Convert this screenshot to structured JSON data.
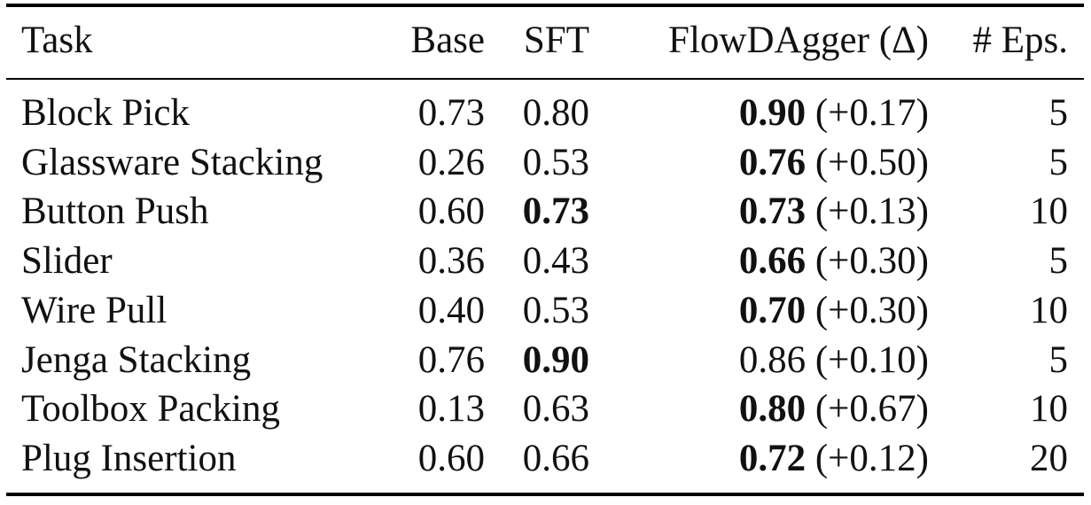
{
  "table": {
    "headers": {
      "task": "Task",
      "base": "Base",
      "sft": "SFT",
      "flow": "FlowDAgger (Δ)",
      "eps": "# Eps."
    },
    "rows": [
      {
        "task": "Block Pick",
        "base": "0.73",
        "sft": "0.80",
        "flow": "0.90",
        "delta": "(+0.17)",
        "eps": "5",
        "sft_bold": false,
        "flow_bold": true
      },
      {
        "task": "Glassware Stacking",
        "base": "0.26",
        "sft": "0.53",
        "flow": "0.76",
        "delta": "(+0.50)",
        "eps": "5",
        "sft_bold": false,
        "flow_bold": true
      },
      {
        "task": "Button Push",
        "base": "0.60",
        "sft": "0.73",
        "flow": "0.73",
        "delta": "(+0.13)",
        "eps": "10",
        "sft_bold": true,
        "flow_bold": true
      },
      {
        "task": "Slider",
        "base": "0.36",
        "sft": "0.43",
        "flow": "0.66",
        "delta": "(+0.30)",
        "eps": "5",
        "sft_bold": false,
        "flow_bold": true
      },
      {
        "task": "Wire Pull",
        "base": "0.40",
        "sft": "0.53",
        "flow": "0.70",
        "delta": "(+0.30)",
        "eps": "10",
        "sft_bold": false,
        "flow_bold": true
      },
      {
        "task": "Jenga Stacking",
        "base": "0.76",
        "sft": "0.90",
        "flow": "0.86",
        "delta": "(+0.10)",
        "eps": "5",
        "sft_bold": true,
        "flow_bold": false
      },
      {
        "task": "Toolbox Packing",
        "base": "0.13",
        "sft": "0.63",
        "flow": "0.80",
        "delta": "(+0.67)",
        "eps": "10",
        "sft_bold": false,
        "flow_bold": true
      },
      {
        "task": "Plug Insertion",
        "base": "0.60",
        "sft": "0.66",
        "flow": "0.72",
        "delta": "(+0.12)",
        "eps": "20",
        "sft_bold": false,
        "flow_bold": true
      }
    ]
  }
}
